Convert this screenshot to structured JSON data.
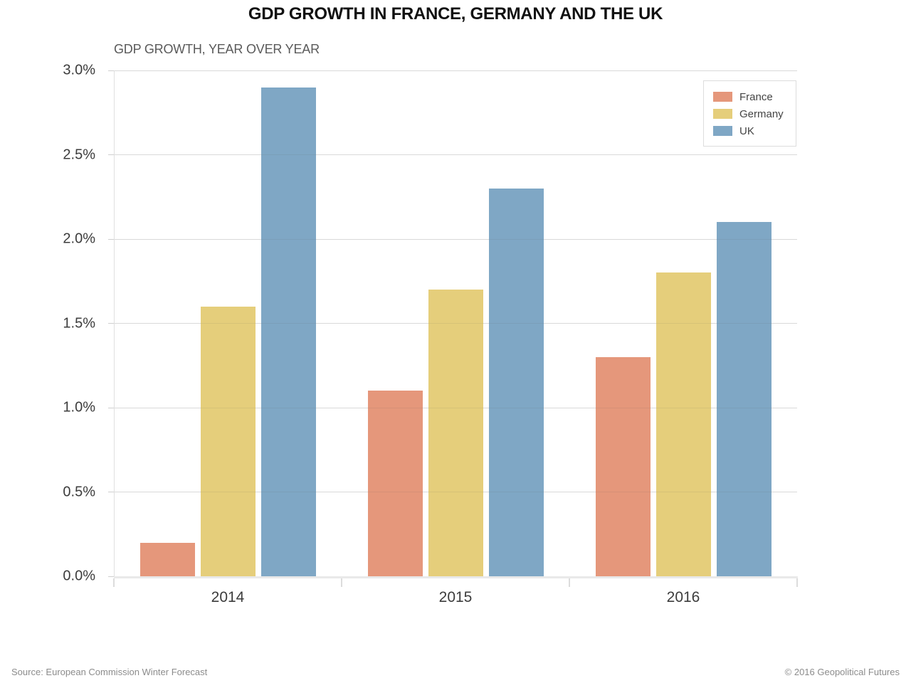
{
  "chart_data": {
    "type": "bar",
    "title": "GDP GROWTH IN FRANCE, GERMANY AND THE UK",
    "subtitle": "GDP GROWTH, YEAR OVER YEAR",
    "categories": [
      "2014",
      "2015",
      "2016"
    ],
    "series": [
      {
        "name": "France",
        "color": "#e5977b",
        "values": [
          0.2,
          1.1,
          1.3
        ]
      },
      {
        "name": "Germany",
        "color": "#e5ce7b",
        "values": [
          1.6,
          1.7,
          1.8
        ]
      },
      {
        "name": "UK",
        "color": "#7fa7c5",
        "values": [
          2.9,
          2.3,
          2.1
        ]
      }
    ],
    "ylabel": "",
    "xlabel": "",
    "ylim": [
      0,
      3.0
    ],
    "ytick_step": 0.5,
    "ytick_labels": [
      "0.0%",
      "0.5%",
      "1.0%",
      "1.5%",
      "2.0%",
      "2.5%",
      "3.0%"
    ],
    "grid": true,
    "legend_position": "top-right"
  },
  "footer": {
    "source": "Source: European Commission Winter Forecast",
    "copyright": "© 2016 Geopolitical Futures"
  },
  "colors": {
    "gridline": "#e8e8e8",
    "axis": "#e0e0e0",
    "tick_label": "#3c3c3c",
    "title": "#111111",
    "subtitle": "#5a5a5a",
    "footer": "#8c8c8c"
  }
}
